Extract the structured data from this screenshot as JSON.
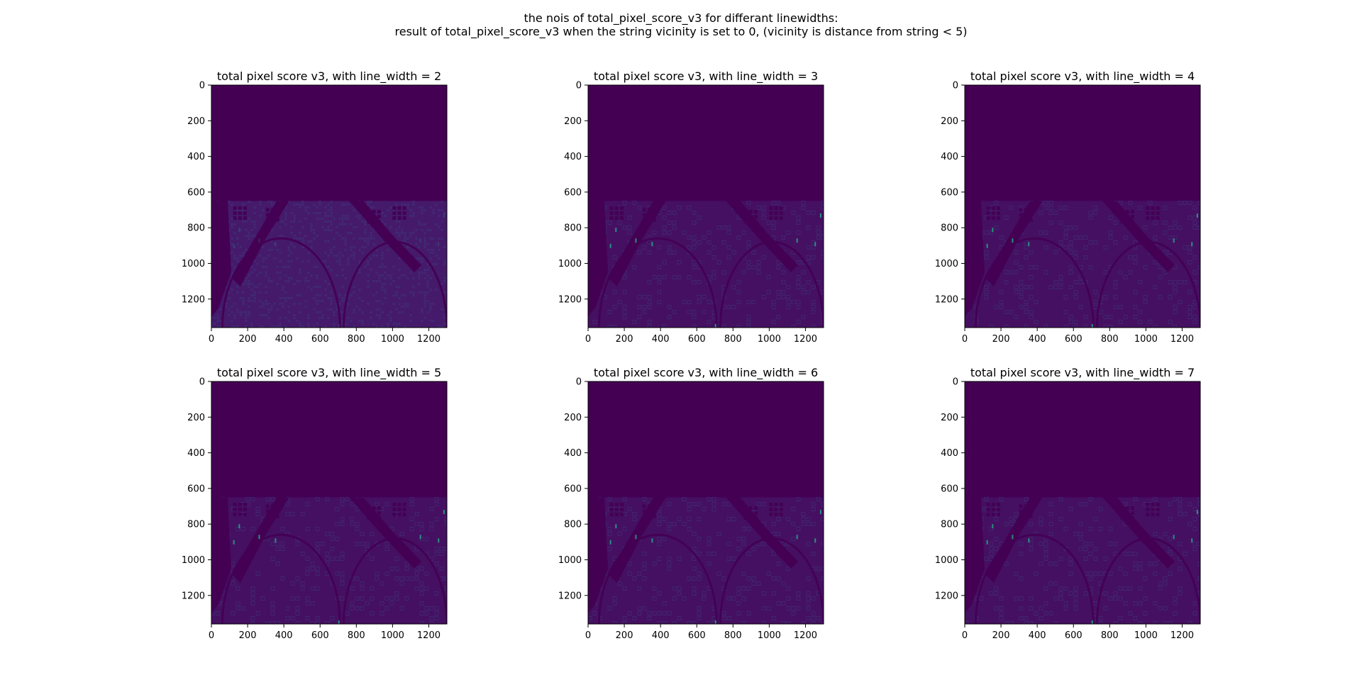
{
  "figure": {
    "suptitle_line1": "the nois of total_pixel_score_v3 for differant linewidths:",
    "suptitle_line2": "result of total_pixel_score_v3 when the string vicinity is set to 0, (vicinity is distance from string < 5)"
  },
  "colors": {
    "background_low": "#440154",
    "texture_mid": "#472f7d",
    "highlight": "#22a884"
  },
  "chart_data": [
    {
      "type": "heatmap",
      "title": "total pixel score v3, with line_width = 2",
      "xlim": [
        0,
        1300
      ],
      "ylim": [
        1360,
        0
      ],
      "x_ticks": [
        0,
        200,
        400,
        600,
        800,
        1000,
        1200
      ],
      "y_ticks": [
        0,
        200,
        400,
        600,
        800,
        1000,
        1200
      ],
      "colormap": "viridis"
    },
    {
      "type": "heatmap",
      "title": "total pixel score v3, with line_width = 3",
      "xlim": [
        0,
        1300
      ],
      "ylim": [
        1360,
        0
      ],
      "x_ticks": [
        0,
        200,
        400,
        600,
        800,
        1000,
        1200
      ],
      "y_ticks": [
        0,
        200,
        400,
        600,
        800,
        1000,
        1200
      ],
      "colormap": "viridis"
    },
    {
      "type": "heatmap",
      "title": "total pixel score v3, with line_width = 4",
      "xlim": [
        0,
        1300
      ],
      "ylim": [
        1360,
        0
      ],
      "x_ticks": [
        0,
        200,
        400,
        600,
        800,
        1000,
        1200
      ],
      "y_ticks": [
        0,
        200,
        400,
        600,
        800,
        1000,
        1200
      ],
      "colormap": "viridis"
    },
    {
      "type": "heatmap",
      "title": "total pixel score v3, with line_width = 5",
      "xlim": [
        0,
        1300
      ],
      "ylim": [
        1360,
        0
      ],
      "x_ticks": [
        0,
        200,
        400,
        600,
        800,
        1000,
        1200
      ],
      "y_ticks": [
        0,
        200,
        400,
        600,
        800,
        1000,
        1200
      ],
      "colormap": "viridis"
    },
    {
      "type": "heatmap",
      "title": "total pixel score v3, with line_width = 6",
      "xlim": [
        0,
        1300
      ],
      "ylim": [
        1360,
        0
      ],
      "x_ticks": [
        0,
        200,
        400,
        600,
        800,
        1000,
        1200
      ],
      "y_ticks": [
        0,
        200,
        400,
        600,
        800,
        1000,
        1200
      ],
      "colormap": "viridis"
    },
    {
      "type": "heatmap",
      "title": "total pixel score v3, with line_width = 7",
      "xlim": [
        0,
        1300
      ],
      "ylim": [
        1360,
        0
      ],
      "x_ticks": [
        0,
        200,
        400,
        600,
        800,
        1000,
        1200
      ],
      "y_ticks": [
        0,
        200,
        400,
        600,
        800,
        1000,
        1200
      ],
      "colormap": "viridis"
    }
  ]
}
